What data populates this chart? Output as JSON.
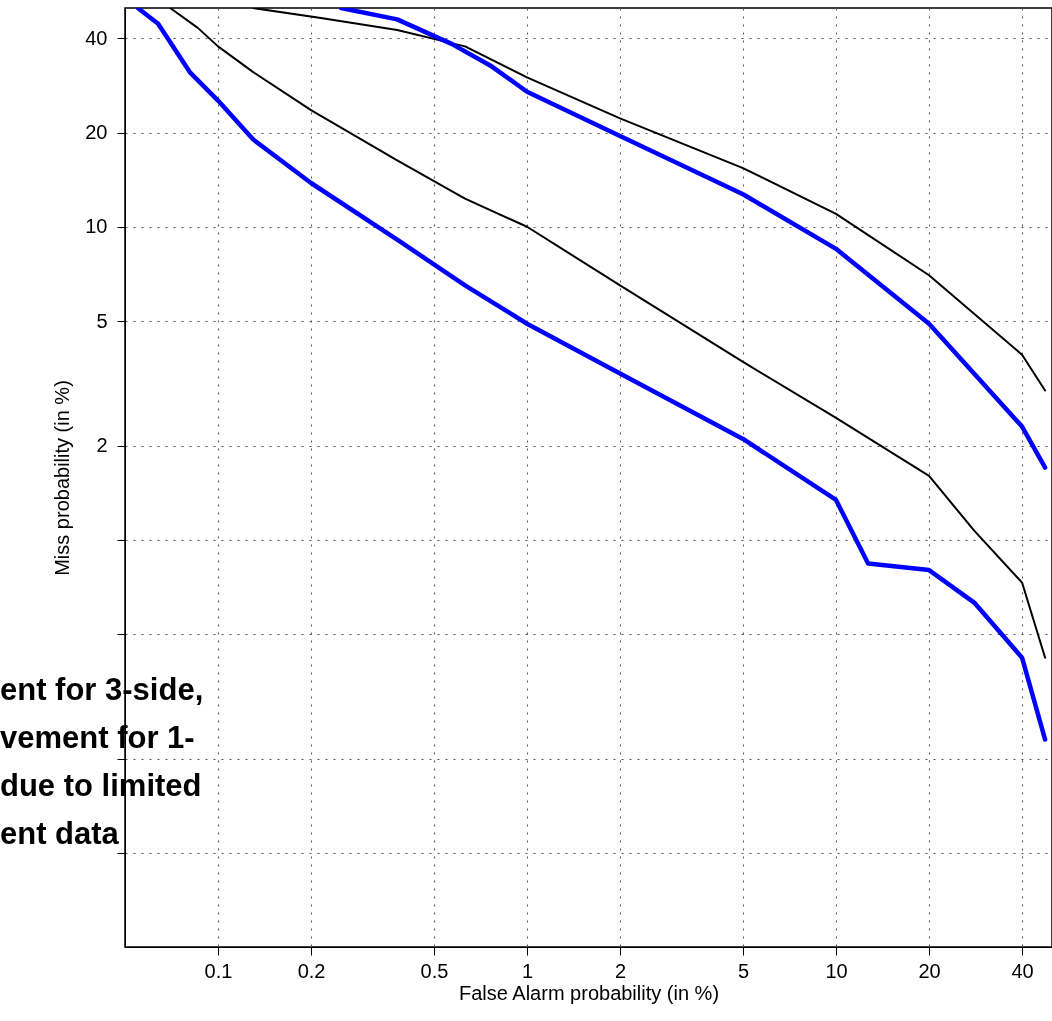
{
  "chart_data": {
    "type": "line",
    "xlabel": "False Alarm probability (in %)",
    "ylabel": "Miss probability (in %)",
    "xlim": [
      0.05,
      50
    ],
    "ylim": [
      0.05,
      50
    ],
    "xticks": [
      0.1,
      0.2,
      0.5,
      1,
      2,
      5,
      10,
      20,
      40
    ],
    "yticks": [
      {
        "value": 0.1,
        "label": null
      },
      {
        "value": 0.2,
        "label": null
      },
      {
        "value": 0.5,
        "label": null
      },
      {
        "value": 1,
        "label": null
      },
      2,
      5,
      10,
      20,
      40
    ],
    "log": "xy",
    "grid": true,
    "marker": "none",
    "line_style": "solid",
    "series": [
      {
        "color": "#000000",
        "x": [
          0.13,
          0.21,
          0.38,
          0.63,
          1,
          2,
          5,
          10,
          20,
          40,
          47.5
        ],
        "values": [
          50,
          46.6,
          42.5,
          37.7,
          30,
          22.2,
          15.4,
          11,
          7,
          3.9,
          3
        ]
      },
      {
        "color": "#0000ff",
        "x": [
          0.25,
          0.38,
          0.57,
          0.77,
          1,
          2,
          5,
          10,
          20,
          40,
          47.5
        ],
        "values": [
          50,
          46,
          38.4,
          32.5,
          27,
          19.5,
          12.7,
          8.5,
          4.9,
          2.3,
          1.7
        ]
      },
      {
        "color": "#000000",
        "x": [
          0.07,
          0.086,
          0.1,
          0.13,
          0.2,
          0.38,
          0.63,
          1,
          2,
          5,
          10,
          20,
          28,
          40,
          47.5
        ],
        "values": [
          50,
          43.2,
          37.7,
          31.2,
          23.6,
          16.3,
          12.3,
          10,
          6.5,
          3.7,
          2.45,
          1.6,
          1.07,
          0.73,
          0.42
        ]
      },
      {
        "color": "#0000ff",
        "x": [
          0.055,
          0.064,
          0.081,
          0.1,
          0.13,
          0.2,
          0.38,
          0.63,
          1,
          2,
          5,
          10,
          12.7,
          20,
          28,
          40,
          47.5
        ],
        "values": [
          50,
          44.5,
          31.2,
          25.3,
          19,
          13.8,
          9.1,
          6.5,
          4.9,
          3.4,
          2.1,
          1.34,
          0.84,
          0.8,
          0.63,
          0.42,
          0.23
        ]
      }
    ],
    "annotations": [
      "ent for 3-side,\nvement for 1-\ndue to limited\nent data"
    ]
  }
}
